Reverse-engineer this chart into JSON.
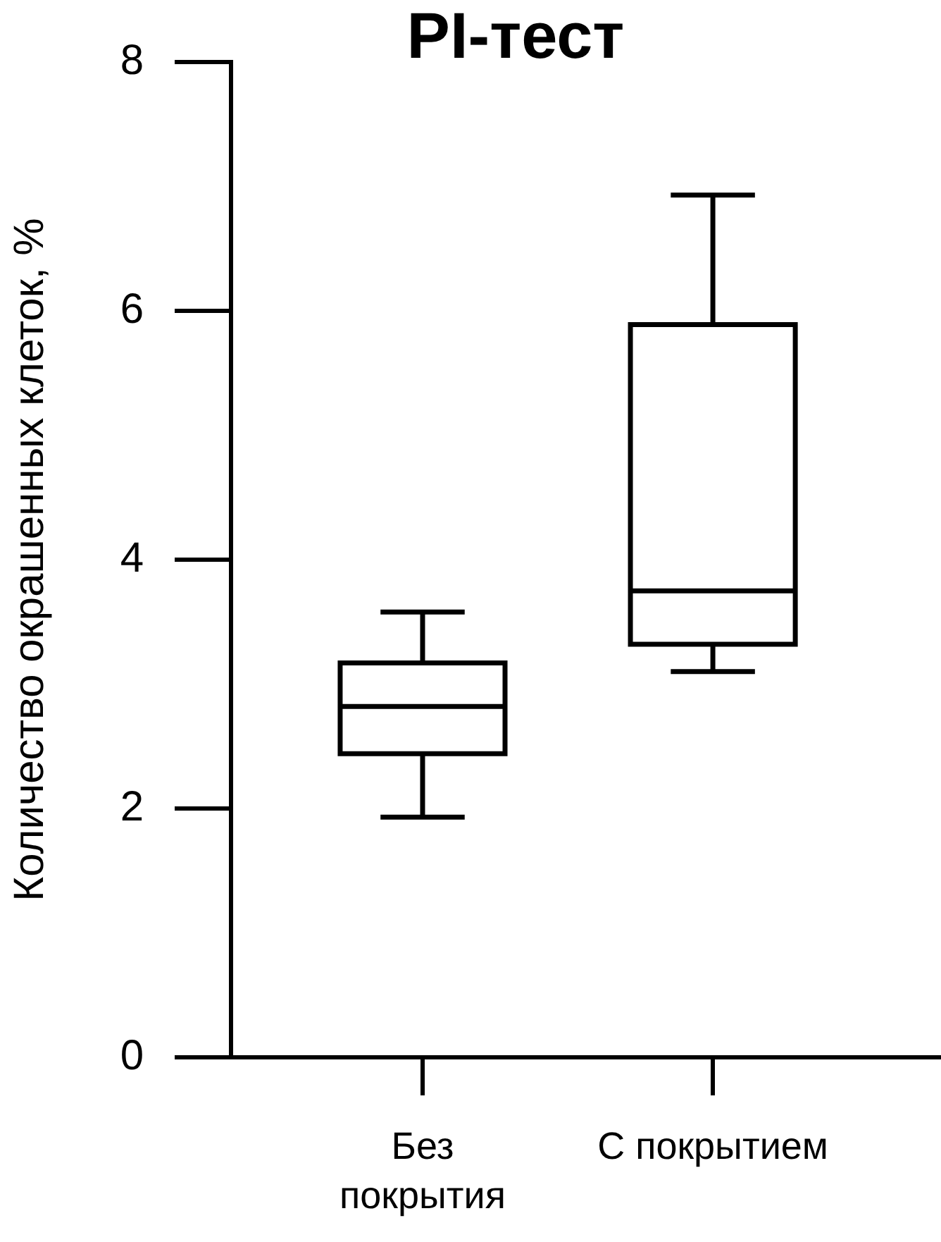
{
  "chart_data": {
    "type": "box",
    "title": "PI-тест",
    "ylabel": "Количество окрашенных клеток, %",
    "categories": [
      "Без\nпокрытия",
      "С покрытием"
    ],
    "color": "#000000",
    "boxes": [
      {
        "low": 1.93,
        "q1": 2.44,
        "median": 2.82,
        "q3": 3.17,
        "high": 3.58
      },
      {
        "low": 3.1,
        "q1": 3.32,
        "median": 3.75,
        "q3": 5.89,
        "high": 6.93
      }
    ],
    "ylim": [
      0,
      8
    ],
    "yticks": [
      0,
      2,
      4,
      6,
      8
    ],
    "grid": false
  }
}
